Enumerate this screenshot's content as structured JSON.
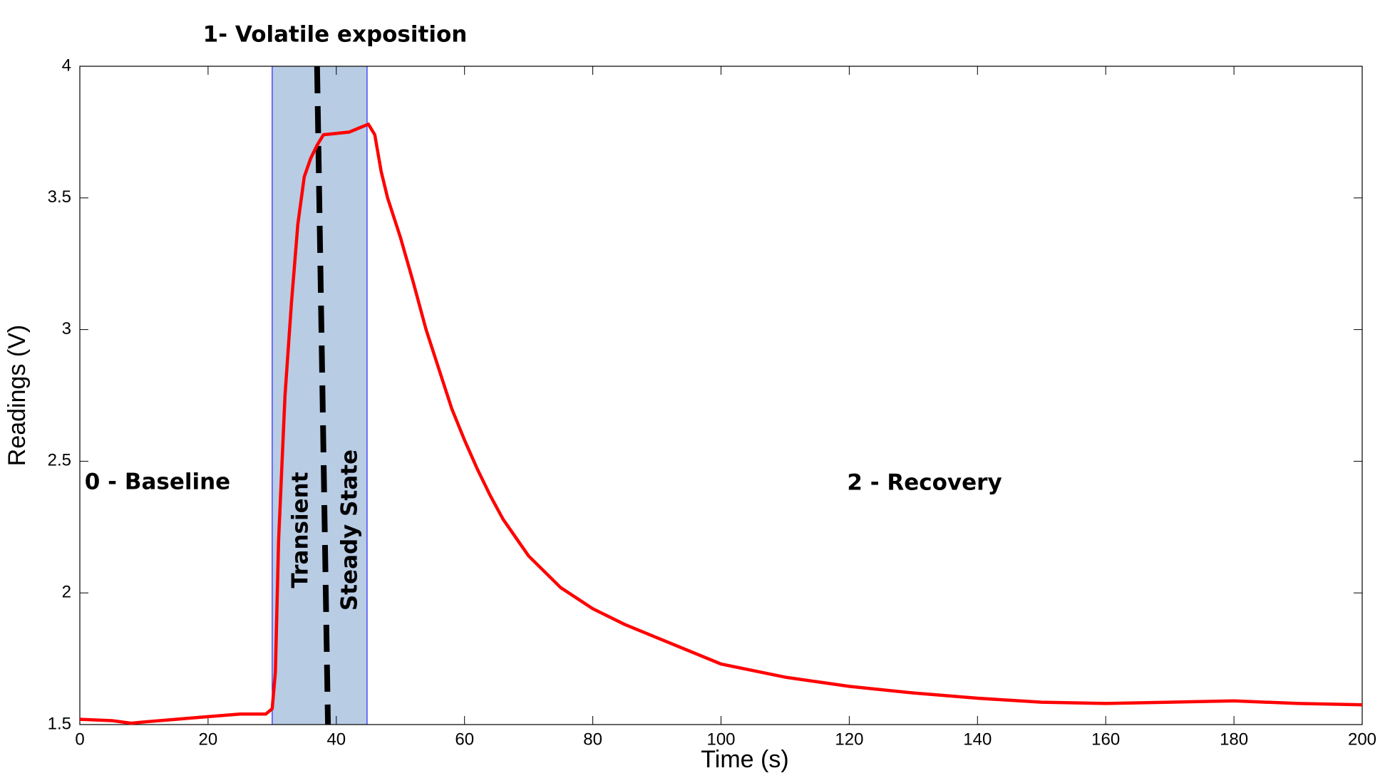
{
  "chart_data": {
    "type": "line",
    "title": "1- Volatile exposition",
    "x_label": "Time (s)",
    "y_label": "Readings (V)",
    "xlim": [
      0,
      200
    ],
    "ylim": [
      1.5,
      4
    ],
    "xticks": [
      0,
      20,
      40,
      60,
      80,
      100,
      120,
      140,
      160,
      180,
      200
    ],
    "yticks": [
      1.5,
      2,
      2.5,
      3,
      3.5,
      4
    ],
    "x": [
      0,
      5,
      8,
      10,
      15,
      20,
      25,
      29,
      30,
      30.5,
      31,
      32,
      33,
      34,
      35,
      36,
      37,
      38,
      40,
      42,
      44,
      45,
      46,
      47,
      48,
      50,
      52,
      54,
      56,
      58,
      60,
      62,
      64,
      66,
      68,
      70,
      75,
      80,
      85,
      90,
      95,
      100,
      110,
      120,
      130,
      140,
      150,
      160,
      170,
      180,
      190,
      200
    ],
    "series": [
      {
        "color": "#ff0000",
        "values": [
          1.52,
          1.515,
          1.505,
          1.51,
          1.52,
          1.53,
          1.54,
          1.54,
          1.56,
          1.7,
          2.2,
          2.75,
          3.1,
          3.4,
          3.58,
          3.65,
          3.7,
          3.74,
          3.745,
          3.75,
          3.77,
          3.78,
          3.74,
          3.6,
          3.5,
          3.35,
          3.18,
          3.0,
          2.85,
          2.7,
          2.58,
          2.47,
          2.37,
          2.28,
          2.21,
          2.14,
          2.02,
          1.94,
          1.88,
          1.83,
          1.78,
          1.73,
          1.68,
          1.645,
          1.62,
          1.6,
          1.585,
          1.58,
          1.585,
          1.59,
          1.58,
          1.575
        ]
      }
    ],
    "shaded_region": {
      "x": [
        30,
        44.8
      ],
      "color": "#b8cce4",
      "edge_color": "#0000ff"
    },
    "divider": {
      "x": [
        37,
        38.7
      ],
      "color": "#000000"
    },
    "annotations": [
      "0 - Baseline",
      "Transient",
      "Steady State",
      "2 - Recovery"
    ]
  }
}
